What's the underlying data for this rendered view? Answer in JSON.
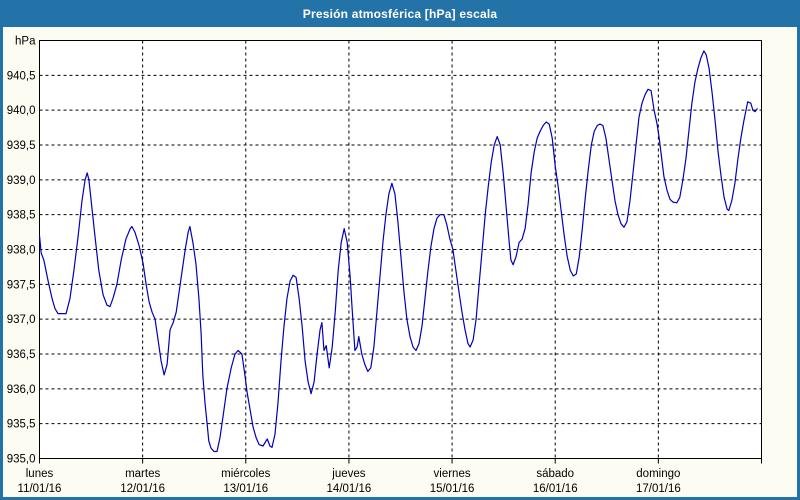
{
  "titlebar": {
    "title": "Presión atmosférica [hPa] escala"
  },
  "colors": {
    "chrome_blue": "#2473A8",
    "content_bg": "#FCFCF3",
    "plot_bg": "#FFFFFF",
    "grid": "#000000",
    "frame": "#000000",
    "text": "#000000",
    "title_text": "#FFFFFF",
    "line_blue": "#0000BB"
  },
  "chart_data": {
    "type": "line",
    "title": "Presión atmosférica [hPa] escala",
    "ylabel": "hPa",
    "y_unit_label": "hPa",
    "ylim": [
      935.0,
      941.0
    ],
    "y_step": 0.5,
    "y_tick_labels": [
      "hPa",
      "940,5",
      "940,0",
      "939,5",
      "939,0",
      "938,5",
      "938,0",
      "937,5",
      "937,0",
      "936,5",
      "936,0",
      "935,5",
      "935,0"
    ],
    "x_unit": "hours since Monday 00:00",
    "xlim": [
      0,
      168
    ],
    "hours_per_day": 24,
    "grid": true,
    "legend": "none",
    "days": [
      {
        "weekday": "lunes",
        "date": "11/01/16"
      },
      {
        "weekday": "martes",
        "date": "12/01/16"
      },
      {
        "weekday": "miércoles",
        "date": "13/01/16"
      },
      {
        "weekday": "jueves",
        "date": "14/01/16"
      },
      {
        "weekday": "viernes",
        "date": "15/01/16"
      },
      {
        "weekday": "sábado",
        "date": "16/01/16"
      },
      {
        "weekday": "domingo",
        "date": "17/01/16"
      }
    ],
    "series": [
      {
        "name": "Presión atmosférica [hPa]",
        "points": [
          [
            0,
            938.2
          ],
          [
            0.4,
            937.95
          ],
          [
            1,
            937.85
          ],
          [
            2,
            937.55
          ],
          [
            2.9,
            937.3
          ],
          [
            3.6,
            937.15
          ],
          [
            4.3,
            937.08
          ],
          [
            6.2,
            937.08
          ],
          [
            7.1,
            937.3
          ],
          [
            8,
            937.7
          ],
          [
            9,
            938.2
          ],
          [
            9.9,
            938.7
          ],
          [
            10.6,
            939.0
          ],
          [
            11.1,
            939.1
          ],
          [
            11.5,
            939.0
          ],
          [
            12.2,
            938.6
          ],
          [
            12.9,
            938.2
          ],
          [
            13.8,
            937.7
          ],
          [
            14.8,
            937.35
          ],
          [
            15.7,
            937.2
          ],
          [
            16.4,
            937.18
          ],
          [
            17.1,
            937.3
          ],
          [
            18,
            937.5
          ],
          [
            19,
            937.85
          ],
          [
            20.1,
            938.15
          ],
          [
            21.1,
            938.3
          ],
          [
            21.5,
            938.33
          ],
          [
            22.2,
            938.25
          ],
          [
            23.2,
            938.05
          ],
          [
            24.1,
            937.8
          ],
          [
            24.8,
            937.5
          ],
          [
            25.5,
            937.25
          ],
          [
            26.2,
            937.1
          ],
          [
            26.9,
            937.0
          ],
          [
            27.6,
            936.7
          ],
          [
            28.3,
            936.4
          ],
          [
            29,
            936.2
          ],
          [
            29.7,
            936.35
          ],
          [
            30.4,
            936.85
          ],
          [
            31.1,
            936.95
          ],
          [
            31.8,
            937.1
          ],
          [
            32.5,
            937.4
          ],
          [
            33.2,
            937.7
          ],
          [
            33.9,
            938.0
          ],
          [
            34.6,
            938.25
          ],
          [
            35,
            938.33
          ],
          [
            35.7,
            938.1
          ],
          [
            36.4,
            937.8
          ],
          [
            37.1,
            937.3
          ],
          [
            37.6,
            936.8
          ],
          [
            38,
            936.2
          ],
          [
            38.5,
            935.8
          ],
          [
            39,
            935.5
          ],
          [
            39.4,
            935.25
          ],
          [
            39.9,
            935.15
          ],
          [
            40.6,
            935.1
          ],
          [
            41.3,
            935.1
          ],
          [
            42,
            935.3
          ],
          [
            42.7,
            935.6
          ],
          [
            43.6,
            936.0
          ],
          [
            44.6,
            936.3
          ],
          [
            45.5,
            936.5
          ],
          [
            46.2,
            936.55
          ],
          [
            47.1,
            936.5
          ],
          [
            47.8,
            936.2
          ],
          [
            48.3,
            935.95
          ],
          [
            49,
            935.7
          ],
          [
            49.7,
            935.45
          ],
          [
            50.4,
            935.3
          ],
          [
            51.1,
            935.2
          ],
          [
            52,
            935.18
          ],
          [
            53,
            935.28
          ],
          [
            53.6,
            935.18
          ],
          [
            54.1,
            935.16
          ],
          [
            54.8,
            935.35
          ],
          [
            55.5,
            935.8
          ],
          [
            56.2,
            936.4
          ],
          [
            56.9,
            936.9
          ],
          [
            57.6,
            937.3
          ],
          [
            58.3,
            937.55
          ],
          [
            59,
            937.63
          ],
          [
            59.7,
            937.6
          ],
          [
            60.4,
            937.3
          ],
          [
            61.1,
            936.9
          ],
          [
            61.8,
            936.4
          ],
          [
            62.5,
            936.1
          ],
          [
            63.2,
            935.93
          ],
          [
            63.9,
            936.1
          ],
          [
            64.6,
            936.5
          ],
          [
            65.3,
            936.85
          ],
          [
            65.7,
            936.95
          ],
          [
            66.2,
            936.55
          ],
          [
            66.7,
            936.62
          ],
          [
            67.4,
            936.3
          ],
          [
            68.1,
            936.6
          ],
          [
            68.8,
            937.1
          ],
          [
            69.5,
            937.7
          ],
          [
            70.2,
            938.1
          ],
          [
            70.9,
            938.3
          ],
          [
            71.6,
            938.1
          ],
          [
            72.3,
            937.6
          ],
          [
            72.7,
            937.2
          ],
          [
            73.4,
            936.55
          ],
          [
            73.9,
            936.6
          ],
          [
            74.3,
            936.75
          ],
          [
            75,
            936.5
          ],
          [
            75.7,
            936.35
          ],
          [
            76.4,
            936.25
          ],
          [
            77.1,
            936.3
          ],
          [
            77.8,
            936.6
          ],
          [
            78.5,
            937.1
          ],
          [
            79.2,
            937.6
          ],
          [
            79.9,
            938.1
          ],
          [
            80.6,
            938.5
          ],
          [
            81.3,
            938.8
          ],
          [
            82,
            938.95
          ],
          [
            82.7,
            938.8
          ],
          [
            83.4,
            938.4
          ],
          [
            84.1,
            937.9
          ],
          [
            84.8,
            937.4
          ],
          [
            85.5,
            937.0
          ],
          [
            86.2,
            936.75
          ],
          [
            86.9,
            936.6
          ],
          [
            87.6,
            936.55
          ],
          [
            88.3,
            936.65
          ],
          [
            89,
            936.9
          ],
          [
            89.7,
            937.3
          ],
          [
            90.4,
            937.7
          ],
          [
            91.1,
            938.05
          ],
          [
            91.8,
            938.3
          ],
          [
            92.5,
            938.45
          ],
          [
            93.2,
            938.5
          ],
          [
            94.1,
            938.5
          ],
          [
            94.8,
            938.35
          ],
          [
            95.5,
            938.15
          ],
          [
            96.2,
            938.0
          ],
          [
            96.9,
            937.7
          ],
          [
            97.6,
            937.4
          ],
          [
            98.3,
            937.1
          ],
          [
            99,
            936.85
          ],
          [
            99.7,
            936.65
          ],
          [
            100.2,
            936.6
          ],
          [
            100.9,
            936.7
          ],
          [
            101.6,
            937.0
          ],
          [
            102.3,
            937.5
          ],
          [
            103,
            938.0
          ],
          [
            103.7,
            938.5
          ],
          [
            104.4,
            938.9
          ],
          [
            105.1,
            939.25
          ],
          [
            105.8,
            939.5
          ],
          [
            106.5,
            939.62
          ],
          [
            107.2,
            939.5
          ],
          [
            107.9,
            939.1
          ],
          [
            108.6,
            938.6
          ],
          [
            109.3,
            938.1
          ],
          [
            109.7,
            937.85
          ],
          [
            110.2,
            937.78
          ],
          [
            110.9,
            937.9
          ],
          [
            111.6,
            938.1
          ],
          [
            112.3,
            938.15
          ],
          [
            113,
            938.3
          ],
          [
            113.7,
            938.65
          ],
          [
            114.4,
            939.1
          ],
          [
            115.1,
            939.4
          ],
          [
            115.8,
            939.6
          ],
          [
            116.5,
            939.7
          ],
          [
            117.2,
            939.78
          ],
          [
            117.9,
            939.83
          ],
          [
            118.6,
            939.8
          ],
          [
            119.3,
            939.6
          ],
          [
            120,
            939.2
          ],
          [
            120.7,
            938.9
          ],
          [
            121.4,
            938.55
          ],
          [
            122.1,
            938.2
          ],
          [
            122.8,
            937.9
          ],
          [
            123.5,
            937.7
          ],
          [
            124.2,
            937.62
          ],
          [
            124.9,
            937.65
          ],
          [
            125.6,
            937.9
          ],
          [
            126.3,
            938.3
          ],
          [
            127,
            938.75
          ],
          [
            127.7,
            939.15
          ],
          [
            128.4,
            939.5
          ],
          [
            129.1,
            939.7
          ],
          [
            129.8,
            939.78
          ],
          [
            130.4,
            939.8
          ],
          [
            131.1,
            939.78
          ],
          [
            131.8,
            939.6
          ],
          [
            132.5,
            939.3
          ],
          [
            133.2,
            939.0
          ],
          [
            133.9,
            938.7
          ],
          [
            134.6,
            938.5
          ],
          [
            135.3,
            938.37
          ],
          [
            136,
            938.32
          ],
          [
            136.7,
            938.4
          ],
          [
            137.4,
            938.7
          ],
          [
            138.1,
            939.1
          ],
          [
            138.8,
            939.5
          ],
          [
            139.5,
            939.9
          ],
          [
            140.2,
            940.1
          ],
          [
            140.9,
            940.22
          ],
          [
            141.6,
            940.3
          ],
          [
            142.3,
            940.28
          ],
          [
            143,
            940.0
          ],
          [
            143.7,
            939.8
          ],
          [
            144.2,
            939.6
          ],
          [
            144.6,
            939.4
          ],
          [
            145.3,
            939.05
          ],
          [
            146,
            938.85
          ],
          [
            146.7,
            938.72
          ],
          [
            147.4,
            938.68
          ],
          [
            148.3,
            938.67
          ],
          [
            149,
            938.75
          ],
          [
            149.7,
            939.0
          ],
          [
            150.4,
            939.3
          ],
          [
            151.1,
            939.7
          ],
          [
            151.8,
            940.1
          ],
          [
            152.5,
            940.4
          ],
          [
            153.2,
            940.6
          ],
          [
            153.9,
            940.75
          ],
          [
            154.6,
            940.85
          ],
          [
            155.1,
            940.8
          ],
          [
            155.8,
            940.6
          ],
          [
            156.5,
            940.25
          ],
          [
            157.2,
            939.85
          ],
          [
            157.9,
            939.4
          ],
          [
            158.6,
            939.05
          ],
          [
            159.3,
            938.75
          ],
          [
            160,
            938.58
          ],
          [
            160.4,
            938.56
          ],
          [
            161.1,
            938.7
          ],
          [
            161.8,
            938.95
          ],
          [
            162.5,
            939.3
          ],
          [
            163.2,
            939.6
          ],
          [
            163.9,
            939.85
          ],
          [
            164.4,
            940.0
          ],
          [
            164.8,
            940.12
          ],
          [
            165.5,
            940.1
          ],
          [
            166,
            940.0
          ],
          [
            166.5,
            939.98
          ],
          [
            167,
            940.02
          ]
        ]
      }
    ]
  }
}
